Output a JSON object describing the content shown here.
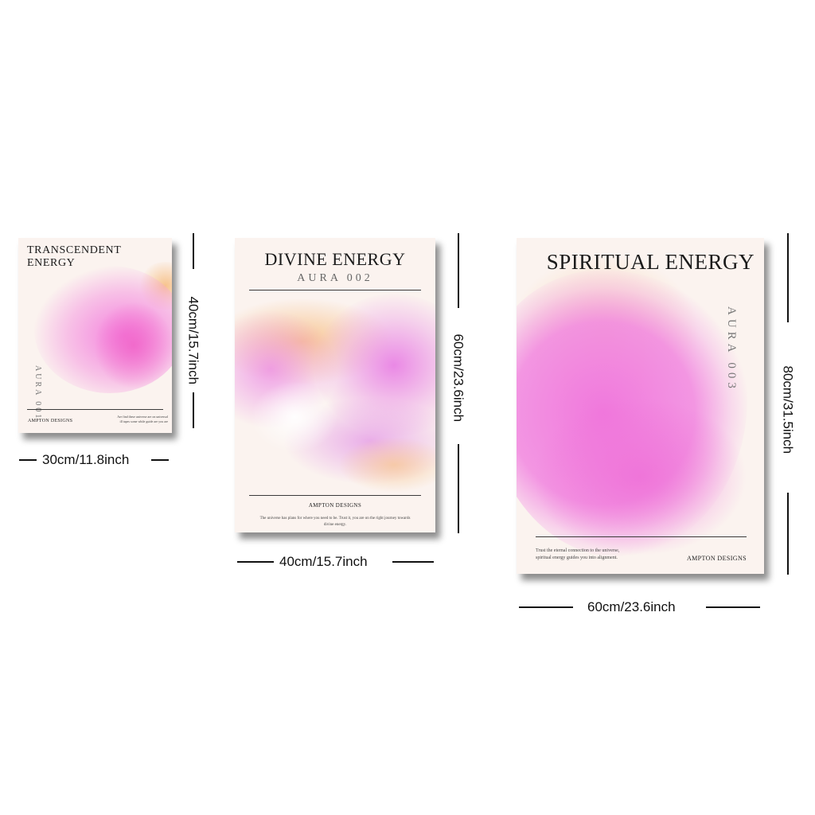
{
  "posters": [
    {
      "title": "TRANSCENDENT ENERGY",
      "aura": "AURA 001",
      "brand": "AMPTON DESIGNS",
      "caption": "Are find these universe are on universal ill tapes some while guide are you are",
      "size_width": "30cm/11.8inch",
      "size_height": "40cm/15.7inch",
      "colors": {
        "pink": "#f48de0",
        "orange": "#f6b58a",
        "cream": "#fbf3ef"
      }
    },
    {
      "title": "DIVINE ENERGY",
      "aura": "AURA 002",
      "brand": "AMPTON DESIGNS",
      "caption": "The universe has plans for where you need to be. Trust it, you are on the right journey towards divine energy.",
      "size_width": "40cm/15.7inch",
      "size_height": "60cm/23.6inch",
      "colors": {
        "pink": "#e98fe6",
        "orange": "#f7c28d",
        "cream": "#fbf3ef"
      }
    },
    {
      "title": "SPIRITUAL ENERGY",
      "aura": "AURA 003",
      "brand": "AMPTON DESIGNS",
      "caption": "Trust the eternal connection to the universe, spiritual energy guides you into alignment.",
      "size_width": "60cm/23.6inch",
      "size_height": "80cm/31.5inch",
      "colors": {
        "pink": "#f086e0",
        "orange": "#f6c98b",
        "cream": "#fbf3ef"
      }
    }
  ]
}
